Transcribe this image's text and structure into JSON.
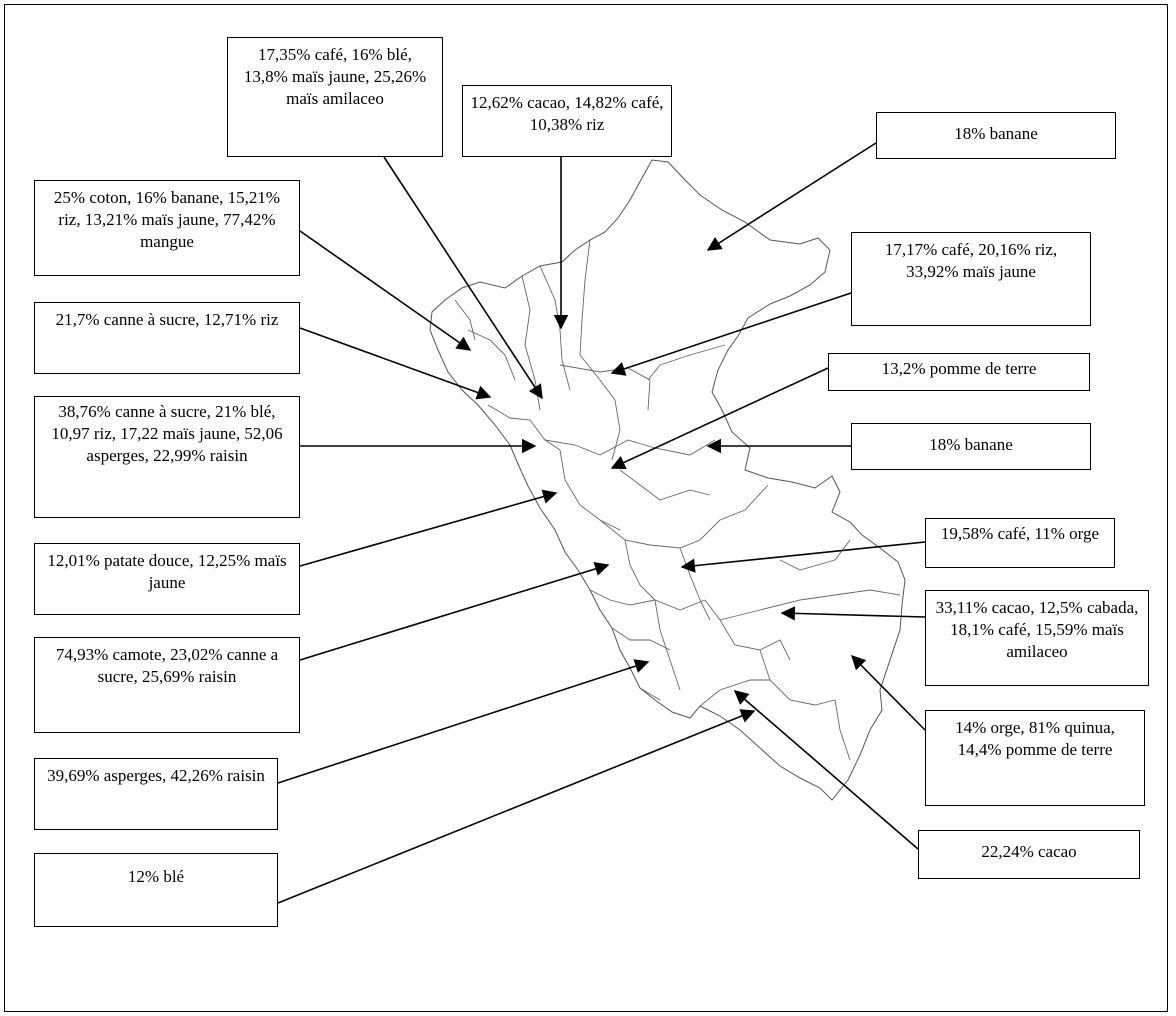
{
  "labels": [
    "17,35% café, 16% blé, 13,8% maïs jaune, 25,26% maïs amilaceo",
    "12,62% cacao, 14,82% café, 10,38% riz",
    "18% banane",
    "25% coton, 16% banane, 15,21% riz,  13,21% maïs jaune, 77,42% mangue",
    "17,17% café, 20,16% riz, 33,92% maïs jaune",
    "21,7% canne à sucre, 12,71% riz",
    "13,2% pomme de terre",
    "38,76% canne à sucre, 21% blé, 10,97 riz, 17,22 maïs jaune, 52,06 asperges, 22,99% raisin",
    "18% banane",
    "12,01% patate douce, 12,25% maïs jaune",
    "19,58% café, 11% orge",
    "74,93% camote, 23,02% canne a sucre, 25,69% raisin",
    "33,11% cacao, 12,5% cabada, 18,1% café, 15,59% maïs amilaceo",
    "14% orge, 81% quinua, 14,4% pomme de terre",
    "39,69% asperges, 42,26% raisin",
    "22,24% cacao",
    "12% blé"
  ]
}
